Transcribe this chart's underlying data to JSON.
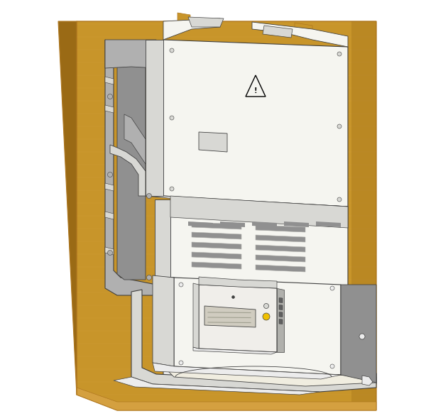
{
  "bg_color": "#ffffff",
  "wood_color": "#c8952a",
  "wood_dark": "#b07820",
  "wood_grain": "#d4a040",
  "wood_shadow": "#9a6a15",
  "panel_color": "#f0ede0",
  "panel_face": "#e8e4d4",
  "panel_shadow": "#c8c4b0",
  "device_white": "#f5f5f0",
  "device_light": "#ececec",
  "device_mid": "#d8d8d4",
  "device_dark": "#b0b0ac",
  "device_shadow": "#909090",
  "meter_face": "#f0eeea",
  "meter_display": "#e8e4dc",
  "gray_bracket": "#b0b0b0",
  "gray_bracket_dark": "#909090",
  "yellow_dot": "#f0c000",
  "black": "#000000",
  "outline": "#404040",
  "line_thin": 0.5,
  "line_med": 0.8,
  "line_thick": 1.2
}
